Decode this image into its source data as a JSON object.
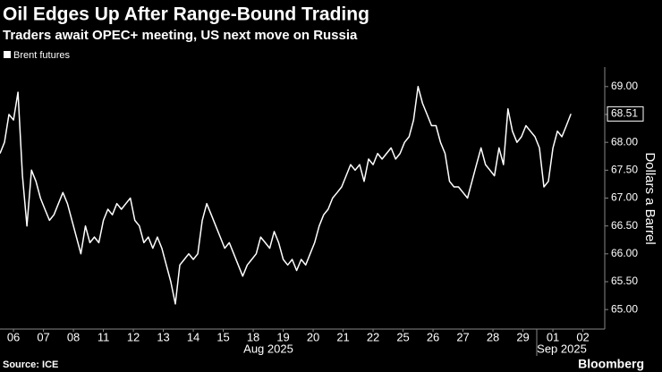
{
  "chart_data": {
    "type": "line",
    "title": "Oil Edges Up After Range-Bound Trading",
    "subtitle": "Traders await OPEC+ meeting, US next move on Russia",
    "y_label": "Dollars a Barrel",
    "source": "Source: ICE",
    "brand": "Bloomberg",
    "x_groups": [
      "Aug 2025",
      "Sep 2025"
    ],
    "xlim": [
      -0.45,
      19.7
    ],
    "xticks": [
      {
        "value": 0,
        "label": "06"
      },
      {
        "value": 1,
        "label": "07"
      },
      {
        "value": 2,
        "label": "08"
      },
      {
        "value": 3,
        "label": "11"
      },
      {
        "value": 4,
        "label": "12"
      },
      {
        "value": 5,
        "label": "13"
      },
      {
        "value": 6,
        "label": "14"
      },
      {
        "value": 7,
        "label": "15"
      },
      {
        "value": 8,
        "label": "18"
      },
      {
        "value": 9,
        "label": "19"
      },
      {
        "value": 10,
        "label": "20"
      },
      {
        "value": 11,
        "label": "21"
      },
      {
        "value": 12,
        "label": "22"
      },
      {
        "value": 13,
        "label": "25"
      },
      {
        "value": 14,
        "label": "26"
      },
      {
        "value": 15,
        "label": "27"
      },
      {
        "value": 16,
        "label": "28"
      },
      {
        "value": 17,
        "label": "29"
      },
      {
        "value": 18,
        "label": "01"
      },
      {
        "value": 19,
        "label": "02"
      }
    ],
    "ylim": [
      64.65,
      69.35
    ],
    "yticks": [
      {
        "value": 65,
        "label": "65.00"
      },
      {
        "value": 65.5,
        "label": "65.50"
      },
      {
        "value": 66,
        "label": "66.00"
      },
      {
        "value": 66.5,
        "label": "66.50"
      },
      {
        "value": 67,
        "label": "67.00"
      },
      {
        "value": 67.5,
        "label": "67.50"
      },
      {
        "value": 68,
        "label": "68.00"
      },
      {
        "value": 68.5,
        "label": "68.50"
      },
      {
        "value": 69,
        "label": "69.00"
      }
    ],
    "x": [
      -0.45,
      -0.3,
      -0.15,
      0,
      0.15,
      0.3,
      0.45,
      0.6,
      0.75,
      0.9,
      1.05,
      1.2,
      1.35,
      1.5,
      1.65,
      1.8,
      1.95,
      2.1,
      2.25,
      2.4,
      2.55,
      2.7,
      2.85,
      3,
      3.15,
      3.3,
      3.45,
      3.6,
      3.75,
      3.9,
      4.05,
      4.2,
      4.35,
      4.5,
      4.65,
      4.8,
      4.95,
      5.1,
      5.25,
      5.4,
      5.55,
      5.7,
      5.85,
      6,
      6.15,
      6.3,
      6.45,
      6.6,
      6.75,
      6.9,
      7.05,
      7.2,
      7.35,
      7.5,
      7.65,
      7.8,
      7.95,
      8.1,
      8.25,
      8.4,
      8.55,
      8.7,
      8.85,
      9,
      9.15,
      9.3,
      9.45,
      9.6,
      9.75,
      9.9,
      10.05,
      10.2,
      10.35,
      10.5,
      10.65,
      10.8,
      10.95,
      11.1,
      11.25,
      11.4,
      11.55,
      11.7,
      11.85,
      12,
      12.15,
      12.3,
      12.45,
      12.6,
      12.75,
      12.9,
      13.05,
      13.2,
      13.35,
      13.5,
      13.65,
      13.8,
      13.95,
      14.1,
      14.25,
      14.4,
      14.55,
      14.7,
      14.85,
      15,
      15.15,
      15.3,
      15.45,
      15.6,
      15.75,
      15.9,
      16.05,
      16.2,
      16.35,
      16.5,
      16.65,
      16.8,
      16.95,
      17.1,
      17.25,
      17.4,
      17.55,
      17.7,
      17.85,
      18,
      18.15,
      18.3,
      18.45,
      18.6
    ],
    "series": [
      {
        "name": "Brent futures",
        "color": "#ffffff",
        "values": [
          67.8,
          68.0,
          68.5,
          68.4,
          68.9,
          67.4,
          66.5,
          67.5,
          67.3,
          67.0,
          66.8,
          66.6,
          66.7,
          66.9,
          67.1,
          66.9,
          66.6,
          66.3,
          66.0,
          66.5,
          66.2,
          66.3,
          66.2,
          66.6,
          66.8,
          66.7,
          66.9,
          66.8,
          66.9,
          67.0,
          66.6,
          66.5,
          66.2,
          66.3,
          66.1,
          66.3,
          66.1,
          65.8,
          65.5,
          65.1,
          65.8,
          65.9,
          66.0,
          65.9,
          66.0,
          66.6,
          66.9,
          66.7,
          66.5,
          66.3,
          66.1,
          66.2,
          66.0,
          65.8,
          65.6,
          65.8,
          65.9,
          66.0,
          66.3,
          66.2,
          66.1,
          66.4,
          66.2,
          65.9,
          65.8,
          65.9,
          65.7,
          65.9,
          65.8,
          66.0,
          66.2,
          66.5,
          66.7,
          66.8,
          67.0,
          67.1,
          67.2,
          67.4,
          67.6,
          67.5,
          67.6,
          67.3,
          67.7,
          67.6,
          67.8,
          67.7,
          67.8,
          67.9,
          67.7,
          67.8,
          68.0,
          68.1,
          68.4,
          69.0,
          68.7,
          68.5,
          68.3,
          68.3,
          68.0,
          67.8,
          67.3,
          67.2,
          67.2,
          67.1,
          67.0,
          67.3,
          67.6,
          67.9,
          67.6,
          67.5,
          67.4,
          67.9,
          67.6,
          68.6,
          68.2,
          68.0,
          68.1,
          68.3,
          68.2,
          68.1,
          67.9,
          67.2,
          67.3,
          67.9,
          68.2,
          68.1,
          68.3,
          68.51
        ]
      }
    ]
  }
}
